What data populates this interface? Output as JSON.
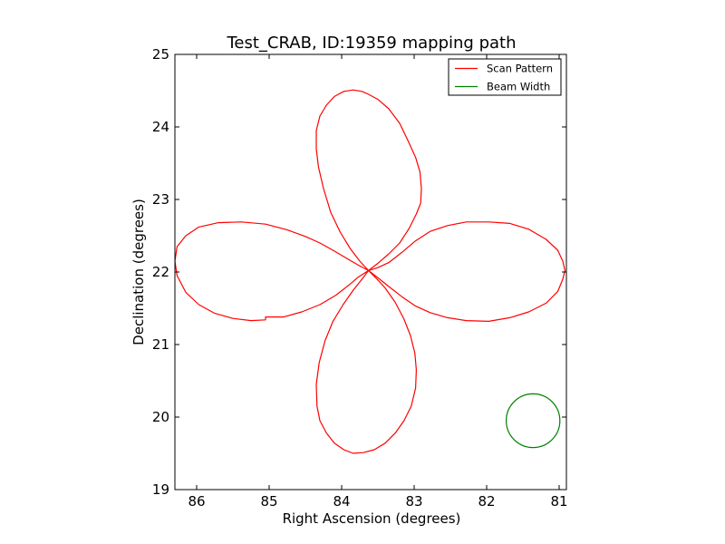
{
  "chart_data": {
    "type": "line",
    "title": "Test_CRAB, ID:19359 mapping path",
    "xlabel": "Right Ascension (degrees)",
    "ylabel": "Declination (degrees)",
    "xlim": [
      86.3,
      80.9
    ],
    "ylim": [
      19,
      25
    ],
    "x_inverted": true,
    "xticks": [
      86,
      85,
      84,
      83,
      82,
      81
    ],
    "yticks": [
      19,
      20,
      21,
      22,
      23,
      24,
      25
    ],
    "grid": false,
    "legend_position": "top-right",
    "series": [
      {
        "name": "Scan Pattern",
        "color": "#ff0000",
        "x": [
          83.63,
          83.75,
          83.88,
          84.02,
          84.15,
          84.25,
          84.32,
          84.35,
          84.35,
          84.3,
          84.21,
          84.1,
          83.97,
          83.84,
          83.72,
          83.63,
          83.5,
          83.35,
          83.2,
          83.08,
          82.98,
          82.92,
          82.9,
          82.91,
          82.97,
          83.07,
          83.2,
          83.35,
          83.5,
          83.63,
          83.78,
          83.95,
          84.12,
          84.3,
          84.5,
          84.75,
          85.05,
          85.38,
          85.7,
          85.97,
          86.15,
          86.27,
          86.3,
          86.27,
          86.15,
          85.97,
          85.75,
          85.5,
          85.25,
          85.05,
          85.05,
          84.8,
          84.55,
          84.3,
          84.08,
          83.9,
          83.77,
          83.63,
          83.72,
          83.84,
          83.98,
          84.12,
          84.23,
          84.31,
          84.35,
          84.34,
          84.3,
          84.21,
          84.1,
          83.97,
          83.84,
          83.7,
          83.55,
          83.4,
          83.26,
          83.14,
          83.04,
          82.98,
          82.97,
          82.99,
          83.05,
          83.14,
          83.26,
          83.4,
          83.53,
          83.63,
          83.5,
          83.35,
          83.17,
          82.98,
          82.78,
          82.54,
          82.28,
          81.97,
          81.68,
          81.42,
          81.18,
          81.02,
          80.95,
          80.92,
          80.95,
          81.02,
          81.18,
          81.42,
          81.68,
          81.97,
          82.28,
          82.54,
          82.78,
          82.98,
          83.17,
          83.35,
          83.5,
          83.63
        ],
        "y": [
          22.02,
          22.15,
          22.32,
          22.55,
          22.82,
          23.15,
          23.45,
          23.7,
          23.95,
          24.15,
          24.3,
          24.42,
          24.49,
          24.51,
          24.49,
          24.45,
          24.38,
          24.25,
          24.05,
          23.8,
          23.58,
          23.38,
          23.15,
          22.95,
          22.8,
          22.6,
          22.4,
          22.25,
          22.12,
          22.02,
          22.1,
          22.2,
          22.3,
          22.4,
          22.49,
          22.58,
          22.66,
          22.69,
          22.68,
          22.62,
          22.5,
          22.35,
          22.15,
          21.95,
          21.72,
          21.55,
          21.43,
          21.36,
          21.33,
          21.34,
          21.38,
          21.38,
          21.45,
          21.55,
          21.68,
          21.82,
          21.93,
          22.02,
          21.9,
          21.75,
          21.55,
          21.32,
          21.05,
          20.75,
          20.45,
          20.15,
          19.95,
          19.78,
          19.64,
          19.55,
          19.5,
          19.51,
          19.55,
          19.64,
          19.78,
          19.95,
          20.15,
          20.4,
          20.65,
          20.88,
          21.12,
          21.35,
          21.58,
          21.78,
          21.92,
          22.02,
          21.92,
          21.8,
          21.66,
          21.53,
          21.44,
          21.37,
          21.33,
          21.32,
          21.37,
          21.45,
          21.57,
          21.73,
          21.9,
          22.02,
          22.15,
          22.3,
          22.45,
          22.59,
          22.67,
          22.69,
          22.69,
          22.64,
          22.56,
          22.43,
          22.27,
          22.13,
          22.06,
          22.02
        ]
      },
      {
        "name": "Beam Width",
        "color": "#008000",
        "shape": "circle",
        "center": [
          81.36,
          19.95
        ],
        "radius_deg": 0.37
      }
    ]
  }
}
